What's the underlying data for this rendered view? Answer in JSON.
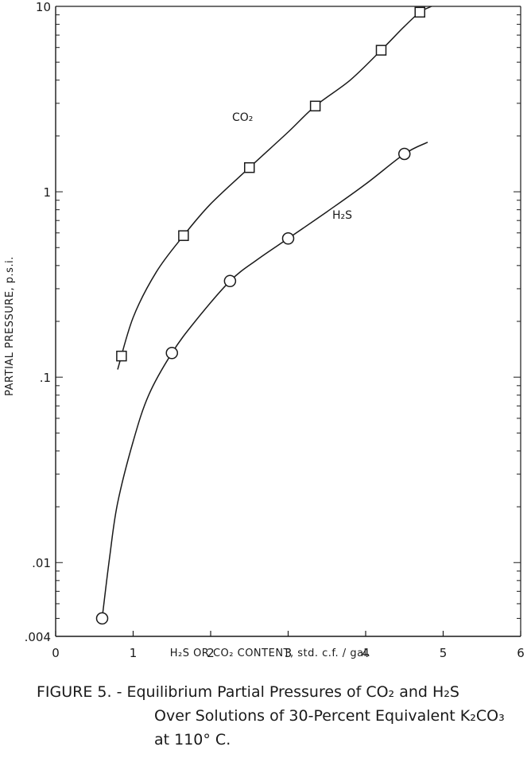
{
  "chart_data": {
    "type": "scatter",
    "xlabel": "H₂S OR CO₂ CONTENT, std. c.f. / gal.",
    "ylabel": "PARTIAL PRESSURE, p.s.i.",
    "xlim": [
      0,
      6
    ],
    "ylim": [
      0.004,
      10
    ],
    "y_scale": "log",
    "x_ticks": [
      "0",
      "1",
      "2",
      "3",
      "4",
      "5",
      "6"
    ],
    "y_ticks": [
      {
        "value": 10,
        "label": "10"
      },
      {
        "value": 1,
        "label": "1"
      },
      {
        "value": 0.1,
        "label": ".1"
      },
      {
        "value": 0.01,
        "label": ".01"
      },
      {
        "value": 0.004,
        "label": ".004"
      }
    ],
    "series": [
      {
        "name": "CO₂",
        "marker": "square",
        "x": [
          0.85,
          1.65,
          2.5,
          3.35,
          4.2,
          4.7
        ],
        "y": [
          0.13,
          0.58,
          1.35,
          2.9,
          5.8,
          9.3
        ],
        "curve_x": [
          0.8,
          1.0,
          1.3,
          1.65,
          2.0,
          2.5,
          3.0,
          3.35,
          3.8,
          4.2,
          4.5,
          4.7,
          4.85
        ],
        "curve_y": [
          0.11,
          0.21,
          0.37,
          0.58,
          0.86,
          1.35,
          2.1,
          2.9,
          4.0,
          5.8,
          7.8,
          9.3,
          10
        ]
      },
      {
        "name": "H₂S",
        "marker": "circle",
        "x": [
          0.6,
          1.5,
          2.25,
          3.0,
          4.5
        ],
        "y": [
          0.005,
          0.135,
          0.33,
          0.56,
          1.6
        ],
        "curve_x": [
          0.6,
          0.7,
          0.8,
          1.0,
          1.2,
          1.5,
          1.8,
          2.25,
          2.6,
          3.0,
          3.5,
          4.0,
          4.5,
          4.8
        ],
        "curve_y": [
          0.005,
          0.011,
          0.021,
          0.045,
          0.08,
          0.135,
          0.2,
          0.33,
          0.43,
          0.56,
          0.78,
          1.1,
          1.6,
          1.85
        ]
      }
    ]
  },
  "caption": {
    "line1": "FIGURE 5. - Equilibrium Partial Pressures of CO₂ and H₂S",
    "line2": "Over Solutions of 30-Percent Equivalent K₂CO₃",
    "line3": "at 110° C."
  },
  "colors": {
    "ink": "#1a1a1a",
    "background": "#ffffff"
  }
}
